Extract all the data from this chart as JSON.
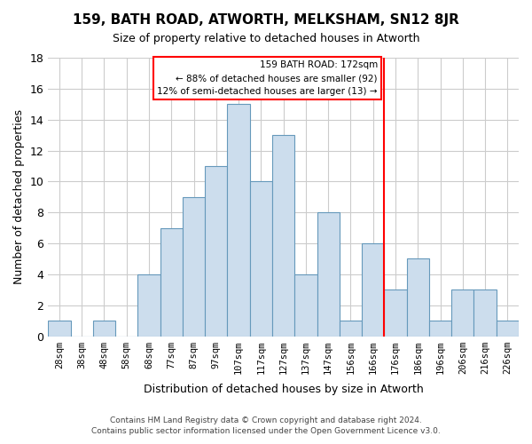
{
  "title": "159, BATH ROAD, ATWORTH, MELKSHAM, SN12 8JR",
  "subtitle": "Size of property relative to detached houses in Atworth",
  "xlabel": "Distribution of detached houses by size in Atworth",
  "ylabel": "Number of detached properties",
  "bar_color": "#ccdded",
  "bar_edge_color": "#6699bb",
  "categories": [
    "28sqm",
    "38sqm",
    "48sqm",
    "58sqm",
    "68sqm",
    "77sqm",
    "87sqm",
    "97sqm",
    "107sqm",
    "117sqm",
    "127sqm",
    "137sqm",
    "147sqm",
    "156sqm",
    "166sqm",
    "176sqm",
    "186sqm",
    "196sqm",
    "206sqm",
    "216sqm",
    "226sqm"
  ],
  "values": [
    1,
    0,
    1,
    0,
    4,
    7,
    9,
    11,
    15,
    10,
    13,
    4,
    8,
    1,
    6,
    3,
    5,
    1,
    3,
    3,
    1
  ],
  "ylim": [
    0,
    18
  ],
  "yticks": [
    0,
    2,
    4,
    6,
    8,
    10,
    12,
    14,
    16,
    18
  ],
  "prop_line_idx": 15.5,
  "annotation_box_text": "159 BATH ROAD: 172sqm\n← 88% of detached houses are smaller (92)\n12% of semi-detached houses are larger (13) →",
  "footer_line1": "Contains HM Land Registry data © Crown copyright and database right 2024.",
  "footer_line2": "Contains public sector information licensed under the Open Government Licence v3.0.",
  "background_color": "#ffffff",
  "grid_color": "#cccccc"
}
